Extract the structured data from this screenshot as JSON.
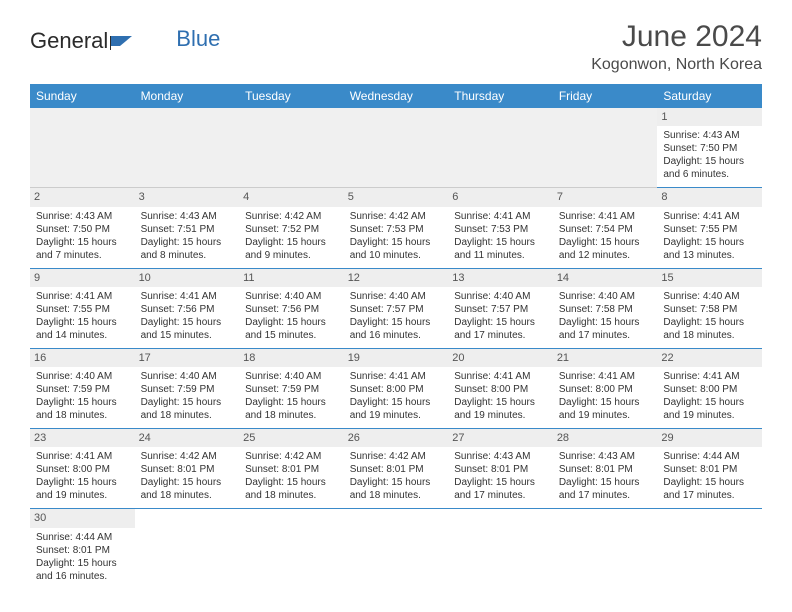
{
  "logo": {
    "text1": "General",
    "text2": "Blue"
  },
  "title": "June 2024",
  "location": "Kogonwon, North Korea",
  "day_headers": [
    "Sunday",
    "Monday",
    "Tuesday",
    "Wednesday",
    "Thursday",
    "Friday",
    "Saturday"
  ],
  "colors": {
    "header_bg": "#3a8ac9",
    "header_text": "#ffffff",
    "daynum_bg": "#eeeeee",
    "row_divider": "#3a8ac9",
    "text": "#333333",
    "logo_blue": "#2f6fb0"
  },
  "weeks": [
    [
      null,
      null,
      null,
      null,
      null,
      null,
      {
        "n": "1",
        "sr": "Sunrise: 4:43 AM",
        "ss": "Sunset: 7:50 PM",
        "dl1": "Daylight: 15 hours",
        "dl2": "and 6 minutes."
      }
    ],
    [
      {
        "n": "2",
        "sr": "Sunrise: 4:43 AM",
        "ss": "Sunset: 7:50 PM",
        "dl1": "Daylight: 15 hours",
        "dl2": "and 7 minutes."
      },
      {
        "n": "3",
        "sr": "Sunrise: 4:43 AM",
        "ss": "Sunset: 7:51 PM",
        "dl1": "Daylight: 15 hours",
        "dl2": "and 8 minutes."
      },
      {
        "n": "4",
        "sr": "Sunrise: 4:42 AM",
        "ss": "Sunset: 7:52 PM",
        "dl1": "Daylight: 15 hours",
        "dl2": "and 9 minutes."
      },
      {
        "n": "5",
        "sr": "Sunrise: 4:42 AM",
        "ss": "Sunset: 7:53 PM",
        "dl1": "Daylight: 15 hours",
        "dl2": "and 10 minutes."
      },
      {
        "n": "6",
        "sr": "Sunrise: 4:41 AM",
        "ss": "Sunset: 7:53 PM",
        "dl1": "Daylight: 15 hours",
        "dl2": "and 11 minutes."
      },
      {
        "n": "7",
        "sr": "Sunrise: 4:41 AM",
        "ss": "Sunset: 7:54 PM",
        "dl1": "Daylight: 15 hours",
        "dl2": "and 12 minutes."
      },
      {
        "n": "8",
        "sr": "Sunrise: 4:41 AM",
        "ss": "Sunset: 7:55 PM",
        "dl1": "Daylight: 15 hours",
        "dl2": "and 13 minutes."
      }
    ],
    [
      {
        "n": "9",
        "sr": "Sunrise: 4:41 AM",
        "ss": "Sunset: 7:55 PM",
        "dl1": "Daylight: 15 hours",
        "dl2": "and 14 minutes."
      },
      {
        "n": "10",
        "sr": "Sunrise: 4:41 AM",
        "ss": "Sunset: 7:56 PM",
        "dl1": "Daylight: 15 hours",
        "dl2": "and 15 minutes."
      },
      {
        "n": "11",
        "sr": "Sunrise: 4:40 AM",
        "ss": "Sunset: 7:56 PM",
        "dl1": "Daylight: 15 hours",
        "dl2": "and 15 minutes."
      },
      {
        "n": "12",
        "sr": "Sunrise: 4:40 AM",
        "ss": "Sunset: 7:57 PM",
        "dl1": "Daylight: 15 hours",
        "dl2": "and 16 minutes."
      },
      {
        "n": "13",
        "sr": "Sunrise: 4:40 AM",
        "ss": "Sunset: 7:57 PM",
        "dl1": "Daylight: 15 hours",
        "dl2": "and 17 minutes."
      },
      {
        "n": "14",
        "sr": "Sunrise: 4:40 AM",
        "ss": "Sunset: 7:58 PM",
        "dl1": "Daylight: 15 hours",
        "dl2": "and 17 minutes."
      },
      {
        "n": "15",
        "sr": "Sunrise: 4:40 AM",
        "ss": "Sunset: 7:58 PM",
        "dl1": "Daylight: 15 hours",
        "dl2": "and 18 minutes."
      }
    ],
    [
      {
        "n": "16",
        "sr": "Sunrise: 4:40 AM",
        "ss": "Sunset: 7:59 PM",
        "dl1": "Daylight: 15 hours",
        "dl2": "and 18 minutes."
      },
      {
        "n": "17",
        "sr": "Sunrise: 4:40 AM",
        "ss": "Sunset: 7:59 PM",
        "dl1": "Daylight: 15 hours",
        "dl2": "and 18 minutes."
      },
      {
        "n": "18",
        "sr": "Sunrise: 4:40 AM",
        "ss": "Sunset: 7:59 PM",
        "dl1": "Daylight: 15 hours",
        "dl2": "and 18 minutes."
      },
      {
        "n": "19",
        "sr": "Sunrise: 4:41 AM",
        "ss": "Sunset: 8:00 PM",
        "dl1": "Daylight: 15 hours",
        "dl2": "and 19 minutes."
      },
      {
        "n": "20",
        "sr": "Sunrise: 4:41 AM",
        "ss": "Sunset: 8:00 PM",
        "dl1": "Daylight: 15 hours",
        "dl2": "and 19 minutes."
      },
      {
        "n": "21",
        "sr": "Sunrise: 4:41 AM",
        "ss": "Sunset: 8:00 PM",
        "dl1": "Daylight: 15 hours",
        "dl2": "and 19 minutes."
      },
      {
        "n": "22",
        "sr": "Sunrise: 4:41 AM",
        "ss": "Sunset: 8:00 PM",
        "dl1": "Daylight: 15 hours",
        "dl2": "and 19 minutes."
      }
    ],
    [
      {
        "n": "23",
        "sr": "Sunrise: 4:41 AM",
        "ss": "Sunset: 8:00 PM",
        "dl1": "Daylight: 15 hours",
        "dl2": "and 19 minutes."
      },
      {
        "n": "24",
        "sr": "Sunrise: 4:42 AM",
        "ss": "Sunset: 8:01 PM",
        "dl1": "Daylight: 15 hours",
        "dl2": "and 18 minutes."
      },
      {
        "n": "25",
        "sr": "Sunrise: 4:42 AM",
        "ss": "Sunset: 8:01 PM",
        "dl1": "Daylight: 15 hours",
        "dl2": "and 18 minutes."
      },
      {
        "n": "26",
        "sr": "Sunrise: 4:42 AM",
        "ss": "Sunset: 8:01 PM",
        "dl1": "Daylight: 15 hours",
        "dl2": "and 18 minutes."
      },
      {
        "n": "27",
        "sr": "Sunrise: 4:43 AM",
        "ss": "Sunset: 8:01 PM",
        "dl1": "Daylight: 15 hours",
        "dl2": "and 17 minutes."
      },
      {
        "n": "28",
        "sr": "Sunrise: 4:43 AM",
        "ss": "Sunset: 8:01 PM",
        "dl1": "Daylight: 15 hours",
        "dl2": "and 17 minutes."
      },
      {
        "n": "29",
        "sr": "Sunrise: 4:44 AM",
        "ss": "Sunset: 8:01 PM",
        "dl1": "Daylight: 15 hours",
        "dl2": "and 17 minutes."
      }
    ],
    [
      {
        "n": "30",
        "sr": "Sunrise: 4:44 AM",
        "ss": "Sunset: 8:01 PM",
        "dl1": "Daylight: 15 hours",
        "dl2": "and 16 minutes."
      },
      null,
      null,
      null,
      null,
      null,
      null
    ]
  ]
}
